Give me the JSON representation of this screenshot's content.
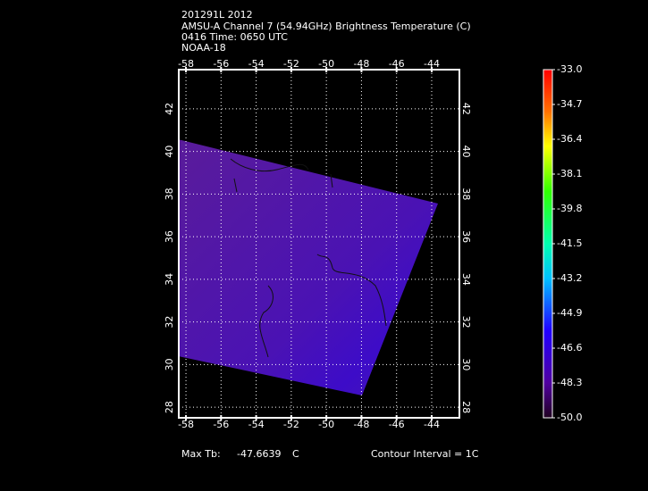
{
  "header": {
    "lines": [
      "201291L 2012",
      "AMSU-A Channel 7 (54.94GHz) Brightness Temperature (C)",
      "0416 Time: 0650 UTC",
      "NOAA-18"
    ]
  },
  "map": {
    "xlim": [
      -58.41,
      -42.42
    ],
    "ylim": [
      27.5,
      43.84
    ],
    "xticks": [
      -58,
      -56,
      -54,
      -52,
      -50,
      -48,
      -46,
      -44
    ],
    "yticks": [
      28,
      30,
      32,
      34,
      36,
      38,
      40,
      42
    ]
  },
  "colorbar": {
    "lim": [
      -50,
      -33
    ],
    "ticks": [
      {
        "value": -33,
        "label": "-33.0"
      },
      {
        "value": -34.7,
        "label": "-34.7"
      },
      {
        "value": -36.4,
        "label": "-36.4"
      },
      {
        "value": -38.1,
        "label": "-38.1"
      },
      {
        "value": -39.8,
        "label": "-39.8"
      },
      {
        "value": -41.5,
        "label": "-41.5"
      },
      {
        "value": -43.2,
        "label": "-43.2"
      },
      {
        "value": -44.9,
        "label": "-44.9"
      },
      {
        "value": -46.6,
        "label": "-46.6"
      },
      {
        "value": -48.3,
        "label": "-48.3"
      },
      {
        "value": -50,
        "label": "-50.0"
      }
    ]
  },
  "footer": {
    "max_label": "Max Tb:",
    "max_value": -47.6639,
    "max_unit": "C",
    "contour": "Contour Interval = 1C"
  }
}
